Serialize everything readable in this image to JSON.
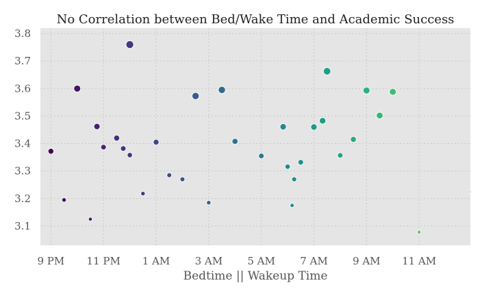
{
  "chart_data": {
    "type": "scatter",
    "title": "No Correlation between Bed/Wake Time and Academic Success",
    "xlabel": "Bedtime || Wakeup Time",
    "ylabel": "",
    "xlim": [
      20.6,
      36.95
    ],
    "ylim": [
      3.03,
      3.82
    ],
    "x_ticks": [
      {
        "value": 21,
        "label": "9 PM"
      },
      {
        "value": 23,
        "label": "11 PM"
      },
      {
        "value": 25,
        "label": "1 AM"
      },
      {
        "value": 27,
        "label": "3 AM"
      },
      {
        "value": 29,
        "label": "5 AM"
      },
      {
        "value": 31,
        "label": "7 AM"
      },
      {
        "value": 33,
        "label": "9 AM"
      },
      {
        "value": 35,
        "label": "11 AM"
      }
    ],
    "y_ticks": [
      {
        "value": 3.1,
        "label": "3.1"
      },
      {
        "value": 3.2,
        "label": "3.2"
      },
      {
        "value": 3.3,
        "label": "3.3"
      },
      {
        "value": 3.4,
        "label": "3.4"
      },
      {
        "value": 3.5,
        "label": "3.5"
      },
      {
        "value": 3.6,
        "label": "3.6"
      },
      {
        "value": 3.7,
        "label": "3.7"
      },
      {
        "value": 3.8,
        "label": "3.8"
      }
    ],
    "grid": true,
    "colormap": "viridis",
    "points": [
      {
        "x": 21.0,
        "y": 3.372,
        "size": 4.2
      },
      {
        "x": 21.5,
        "y": 3.195,
        "size": 3.2
      },
      {
        "x": 22.0,
        "y": 3.6,
        "size": 5.0
      },
      {
        "x": 22.5,
        "y": 3.125,
        "size": 2.8
      },
      {
        "x": 22.75,
        "y": 3.462,
        "size": 4.5
      },
      {
        "x": 23.0,
        "y": 3.387,
        "size": 4.0
      },
      {
        "x": 23.5,
        "y": 3.42,
        "size": 4.3
      },
      {
        "x": 23.75,
        "y": 3.382,
        "size": 4.0
      },
      {
        "x": 24.0,
        "y": 3.76,
        "size": 5.6
      },
      {
        "x": 24.0,
        "y": 3.358,
        "size": 3.8
      },
      {
        "x": 24.5,
        "y": 3.218,
        "size": 3.2
      },
      {
        "x": 25.0,
        "y": 3.405,
        "size": 4.2
      },
      {
        "x": 25.5,
        "y": 3.285,
        "size": 3.5
      },
      {
        "x": 26.0,
        "y": 3.27,
        "size": 3.5
      },
      {
        "x": 26.5,
        "y": 3.573,
        "size": 5.2
      },
      {
        "x": 27.0,
        "y": 3.185,
        "size": 3.2
      },
      {
        "x": 27.5,
        "y": 3.595,
        "size": 5.2
      },
      {
        "x": 28.0,
        "y": 3.408,
        "size": 4.3
      },
      {
        "x": 29.0,
        "y": 3.355,
        "size": 4.0
      },
      {
        "x": 29.83,
        "y": 3.461,
        "size": 4.6
      },
      {
        "x": 30.0,
        "y": 3.316,
        "size": 3.8
      },
      {
        "x": 30.17,
        "y": 3.175,
        "size": 3.0
      },
      {
        "x": 30.25,
        "y": 3.27,
        "size": 3.6
      },
      {
        "x": 30.5,
        "y": 3.332,
        "size": 4.0
      },
      {
        "x": 31.0,
        "y": 3.46,
        "size": 4.6
      },
      {
        "x": 31.33,
        "y": 3.483,
        "size": 4.7
      },
      {
        "x": 31.5,
        "y": 3.663,
        "size": 5.4
      },
      {
        "x": 32.0,
        "y": 3.357,
        "size": 4.0
      },
      {
        "x": 32.5,
        "y": 3.415,
        "size": 4.3
      },
      {
        "x": 33.0,
        "y": 3.593,
        "size": 5.0
      },
      {
        "x": 33.5,
        "y": 3.502,
        "size": 4.8
      },
      {
        "x": 34.0,
        "y": 3.588,
        "size": 5.0
      },
      {
        "x": 35.0,
        "y": 3.078,
        "size": 2.7
      },
      {
        "x": 37.0,
        "y": 3.225,
        "size": 3.5
      }
    ]
  }
}
